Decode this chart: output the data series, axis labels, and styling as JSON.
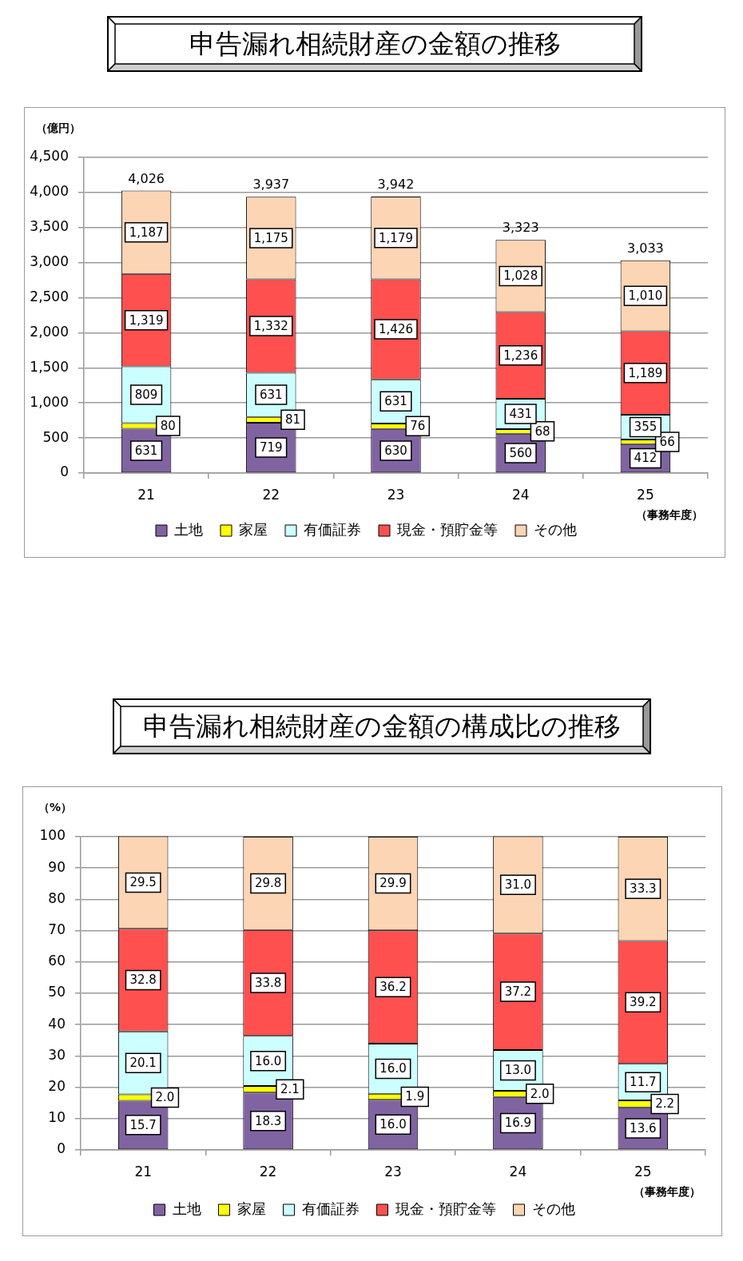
{
  "chart_data": [
    {
      "type": "bar",
      "title": "申告漏れ相続財産の金額の推移",
      "ylabel": "（億円）",
      "xlabel": "（事務年度）",
      "categories": [
        "21",
        "22",
        "23",
        "24",
        "25"
      ],
      "stacked": true,
      "ylim": [
        0,
        4500
      ],
      "yticks": [
        0,
        500,
        {
          "value": 1000,
          "label": "1,000"
        },
        {
          "value": 1500,
          "label": "1,500"
        },
        {
          "value": 2000,
          "label": "2,000"
        },
        {
          "value": 2500,
          "label": "2,500"
        },
        {
          "value": 3000,
          "label": "3,000"
        },
        {
          "value": 3500,
          "label": "3,500"
        },
        {
          "value": 4000,
          "label": "4,000"
        },
        {
          "value": 4500,
          "label": "4,500"
        }
      ],
      "grid": "y",
      "legend": "bottom",
      "series": [
        {
          "name": "土地",
          "color": "#8064a2",
          "values": [
            631,
            719,
            630,
            560,
            412
          ],
          "value_labels": [
            "631",
            "719",
            "630",
            "560",
            "412"
          ]
        },
        {
          "name": "家屋",
          "color": "#ffff00",
          "values": [
            80,
            81,
            76,
            68,
            66
          ],
          "value_labels": [
            "80",
            "81",
            "76",
            "68",
            "66"
          ]
        },
        {
          "name": "有価証券",
          "color": "#ccffff",
          "values": [
            809,
            631,
            631,
            431,
            355
          ],
          "value_labels": [
            "809",
            "631",
            "631",
            "431",
            "355"
          ]
        },
        {
          "name": "現金・預貯金等",
          "color": "#ff5050",
          "values": [
            1319,
            1332,
            1426,
            1236,
            1189
          ],
          "value_labels": [
            "1,319",
            "1,332",
            "1,426",
            "1,236",
            "1,189"
          ]
        },
        {
          "name": "その他",
          "color": "#fcd5b4",
          "values": [
            1187,
            1175,
            1179,
            1028,
            1010
          ],
          "value_labels": [
            "1,187",
            "1,175",
            "1,179",
            "1,028",
            "1,010"
          ]
        }
      ],
      "totals": [
        "4,026",
        "3,937",
        "3,942",
        "3,323",
        "3,033"
      ]
    },
    {
      "type": "bar",
      "title": "申告漏れ相続財産の金額の構成比の推移",
      "ylabel": "（%）",
      "xlabel": "（事務年度）",
      "categories": [
        "21",
        "22",
        "23",
        "24",
        "25"
      ],
      "stacked": true,
      "ylim": [
        0,
        100
      ],
      "yticks": [
        0,
        10,
        20,
        30,
        40,
        50,
        60,
        70,
        80,
        90,
        100
      ],
      "grid": "y",
      "legend": "bottom",
      "series": [
        {
          "name": "土地",
          "color": "#8064a2",
          "values": [
            15.7,
            18.3,
            16.0,
            16.9,
            13.6
          ],
          "value_labels": [
            "15.7",
            "18.3",
            "16.0",
            "16.9",
            "13.6"
          ]
        },
        {
          "name": "家屋",
          "color": "#ffff00",
          "values": [
            2.0,
            2.1,
            1.9,
            2.0,
            2.2
          ],
          "value_labels": [
            "2.0",
            "2.1",
            "1.9",
            "2.0",
            "2.2"
          ]
        },
        {
          "name": "有価証券",
          "color": "#ccffff",
          "values": [
            20.1,
            16.0,
            16.0,
            13.0,
            11.7
          ],
          "value_labels": [
            "20.1",
            "16.0",
            "16.0",
            "13.0",
            "11.7"
          ]
        },
        {
          "name": "現金・預貯金等",
          "color": "#ff5050",
          "values": [
            32.8,
            33.8,
            36.2,
            37.2,
            39.2
          ],
          "value_labels": [
            "32.8",
            "33.8",
            "36.2",
            "37.2",
            "39.2"
          ]
        },
        {
          "name": "その他",
          "color": "#fcd5b4",
          "values": [
            29.5,
            29.8,
            29.9,
            31.0,
            33.3
          ],
          "value_labels": [
            "29.5",
            "29.8",
            "29.9",
            "31.0",
            "33.3"
          ]
        }
      ]
    }
  ]
}
